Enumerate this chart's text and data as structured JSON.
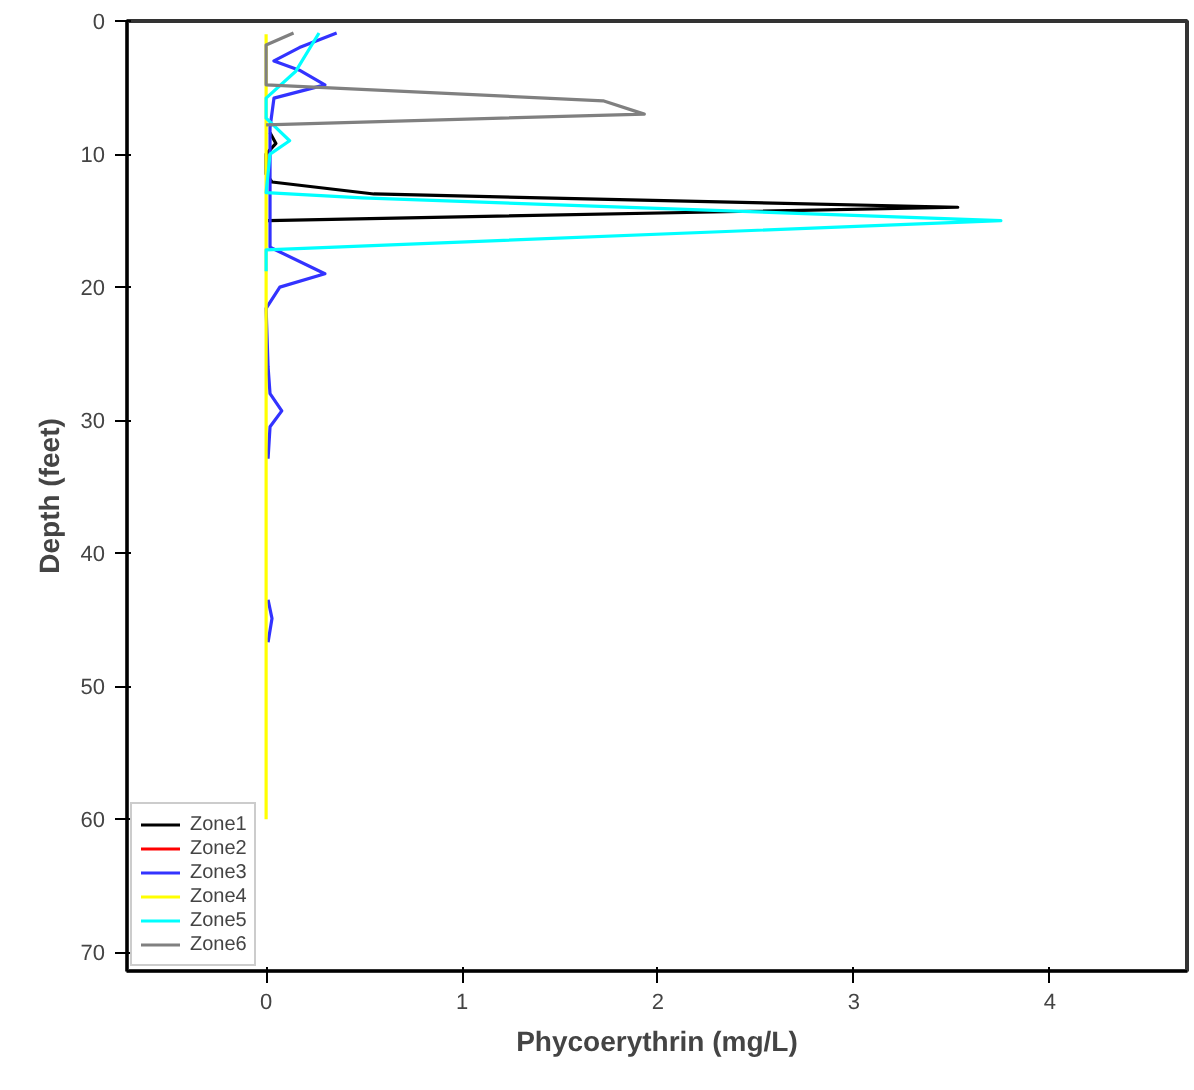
{
  "chart_data": {
    "type": "line",
    "xlabel": "Phycoerythrin (mg/L)",
    "ylabel": "Depth (feet)",
    "xlim": [
      -0.71,
      4.7
    ],
    "ylim": [
      71.4,
      0
    ],
    "xticks": [
      0,
      1,
      2,
      3,
      4
    ],
    "yticks": [
      0,
      10,
      20,
      30,
      40,
      50,
      60,
      70
    ],
    "grid": false,
    "legend": "bottom left",
    "marker": "none",
    "line_style": "solid",
    "series": [
      {
        "name": "Zone1",
        "color": "#000000",
        "x": [
          0.02,
          0.05,
          0.0,
          0.0,
          0.03,
          0.55,
          3.53,
          0.01
        ],
        "values": [
          8.4,
          9.2,
          10.0,
          11.5,
          12.1,
          13.0,
          14.0,
          15.0
        ]
      },
      {
        "name": "Zone2",
        "color": "#ff0000",
        "x": [
          null
        ],
        "values": [
          null
        ]
      },
      {
        "name": "Zone3",
        "color": "#3333ff",
        "x": [
          0.36,
          0.17,
          0.04,
          0.17,
          0.3,
          0.04,
          0.02,
          0.02,
          0.02,
          0.3,
          0.07,
          0.0,
          0.01,
          0.02,
          0.08,
          0.02,
          0.01,
          null,
          0.01,
          0.03,
          0.01
        ],
        "values": [
          0.9,
          2.0,
          3.0,
          3.7,
          4.8,
          5.8,
          8.0,
          12.0,
          17.0,
          19.0,
          20.0,
          21.6,
          26.0,
          28.0,
          29.3,
          30.5,
          32.9,
          null,
          43.5,
          44.9,
          46.7
        ]
      },
      {
        "name": "Zone4",
        "color": "#ffff00",
        "x": [
          0.0,
          0.0
        ],
        "values": [
          1.0,
          60.0
        ]
      },
      {
        "name": "Zone5",
        "color": "#00ffff",
        "x": [
          0.27,
          0.15,
          0.0,
          0.0,
          0.12,
          0.02,
          0.0,
          0.49,
          3.75,
          0.0,
          0.0
        ],
        "values": [
          0.9,
          3.8,
          5.8,
          7.3,
          9.0,
          10.0,
          12.9,
          13.3,
          15.0,
          17.2,
          18.8
        ]
      },
      {
        "name": "Zone6",
        "color": "#808080",
        "x": [
          0.14,
          0.0,
          0.0,
          1.72,
          1.93,
          0.0
        ],
        "values": [
          0.9,
          1.8,
          4.8,
          6.0,
          7.0,
          7.8
        ]
      }
    ]
  }
}
